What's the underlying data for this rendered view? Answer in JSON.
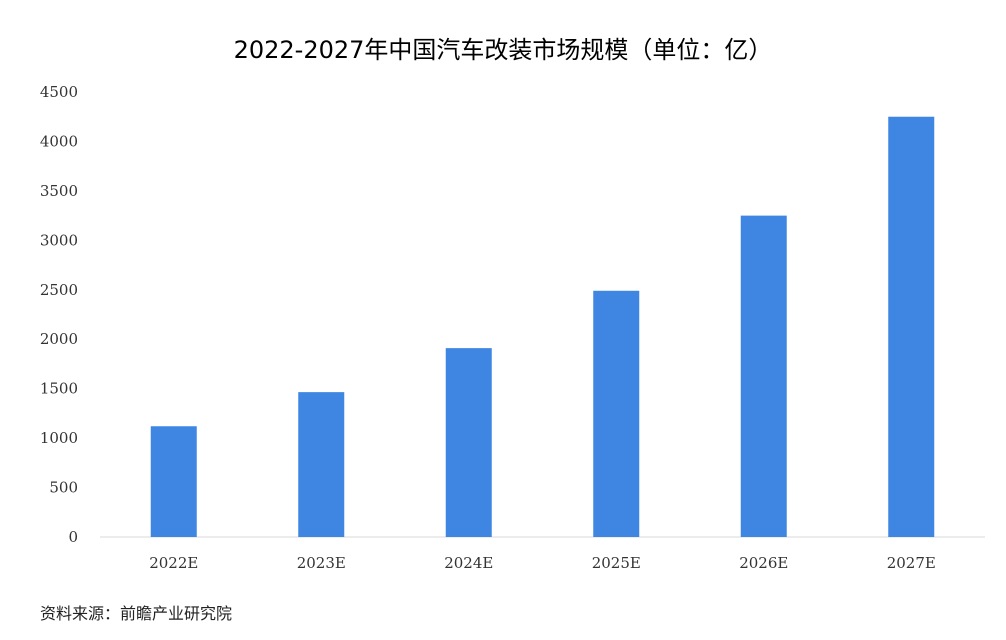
{
  "chart_data": {
    "type": "bar",
    "title": "2022-2027年中国汽车改装市场规模（单位：亿）",
    "categories": [
      "2022E",
      "2023E",
      "2024E",
      "2025E",
      "2026E",
      "2027E"
    ],
    "values": [
      1120,
      1465,
      1910,
      2490,
      3250,
      4250
    ],
    "ylim": [
      0,
      4500
    ],
    "yticks": [
      0,
      500,
      1000,
      1500,
      2000,
      2500,
      3000,
      3500,
      4000,
      4500
    ],
    "grid": false,
    "legend": "none",
    "bar_color": "#3f86e2"
  },
  "source": "资料来源：前瞻产业研究院"
}
